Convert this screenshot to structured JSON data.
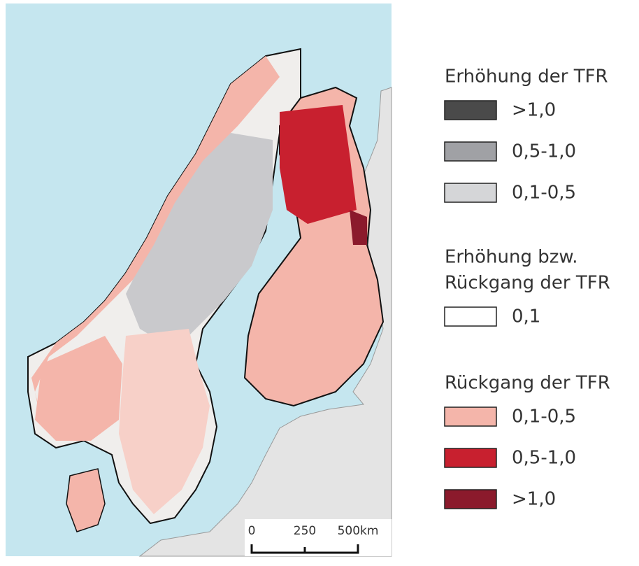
{
  "legend": {
    "groups": [
      {
        "title": [
          "Erhöhung der TFR"
        ],
        "items": [
          {
            "label": ">1,0",
            "color": "#4a4a4a"
          },
          {
            "label": "0,5-1,0",
            "color": "#a0a1a5"
          },
          {
            "label": "0,1-0,5",
            "color": "#d5d6d8"
          }
        ]
      },
      {
        "title": [
          "Erhöhung bzw.",
          "Rückgang der TFR"
        ],
        "items": [
          {
            "label": "0,1",
            "color": "#ffffff"
          }
        ]
      },
      {
        "title": [
          "Rückgang der TFR"
        ],
        "items": [
          {
            "label": "0,1-0,5",
            "color": "#f4b5aa"
          },
          {
            "label": "0,5-1,0",
            "color": "#c8202f"
          },
          {
            "label": ">1,0",
            "color": "#8b1a2c"
          }
        ]
      }
    ]
  },
  "scale_bar": {
    "labels": [
      "0",
      "250",
      "500km"
    ]
  }
}
